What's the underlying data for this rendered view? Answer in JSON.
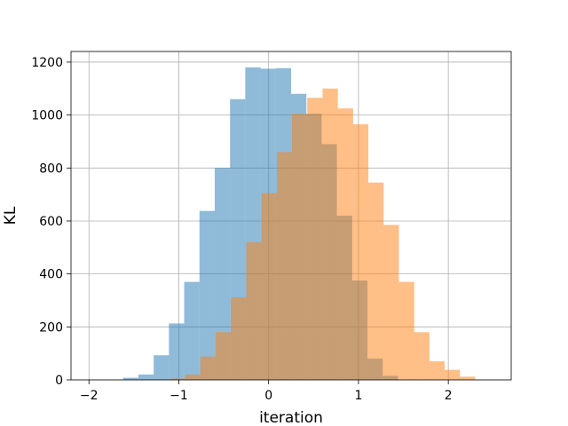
{
  "chart_data": {
    "type": "bar",
    "subtype": "overlapping-histogram",
    "title": "",
    "xlabel": "iteration",
    "ylabel": "KL",
    "xlim": [
      -2.2,
      2.7
    ],
    "ylim": [
      0,
      1240
    ],
    "xticks": [
      -2,
      -1,
      0,
      1,
      2
    ],
    "yticks": [
      0,
      200,
      400,
      600,
      800,
      1000,
      1200
    ],
    "grid": true,
    "legend": "none",
    "bar_alpha": 0.5,
    "series": [
      {
        "color": "#1f77b4",
        "bin_start": -1.62,
        "bin_width": 0.17,
        "counts": [
          8,
          20,
          93,
          213,
          370,
          638,
          800,
          1060,
          1180,
          1175,
          1177,
          1080,
          1005,
          890,
          620,
          375,
          80,
          15
        ]
      },
      {
        "color": "#ff7f0e",
        "bin_start": -1.1,
        "bin_width": 0.17,
        "counts": [
          5,
          20,
          88,
          180,
          312,
          520,
          705,
          860,
          1005,
          1065,
          1100,
          1025,
          965,
          745,
          585,
          370,
          180,
          70,
          38,
          12
        ]
      }
    ]
  }
}
